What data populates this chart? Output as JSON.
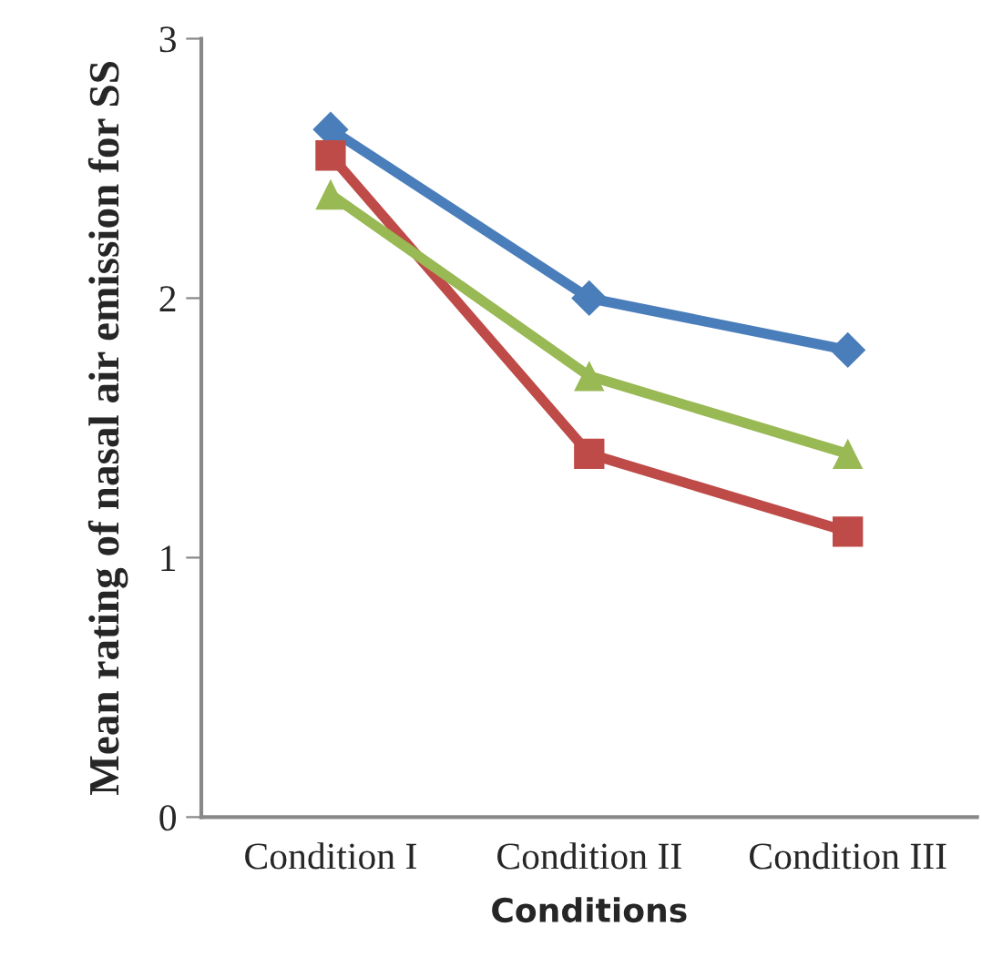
{
  "chart_data": {
    "type": "line",
    "xlabel": "Conditions",
    "ylabel": "Mean rating of nasal air emission for SS",
    "categories": [
      "Condition I",
      "Condition II",
      "Condition III"
    ],
    "series": [
      {
        "color": "#4a7ebb",
        "marker": "diamond",
        "values": [
          2.65,
          2.0,
          1.8
        ]
      },
      {
        "color": "#be4b48",
        "marker": "square",
        "values": [
          2.55,
          1.4,
          1.1
        ]
      },
      {
        "color": "#98b954",
        "marker": "triangle",
        "values": [
          2.4,
          1.7,
          1.4
        ]
      }
    ],
    "ylim": [
      0,
      3
    ],
    "yticks": [
      0,
      1,
      2,
      3
    ],
    "grid": false,
    "legend": false,
    "line_style": "solid"
  }
}
